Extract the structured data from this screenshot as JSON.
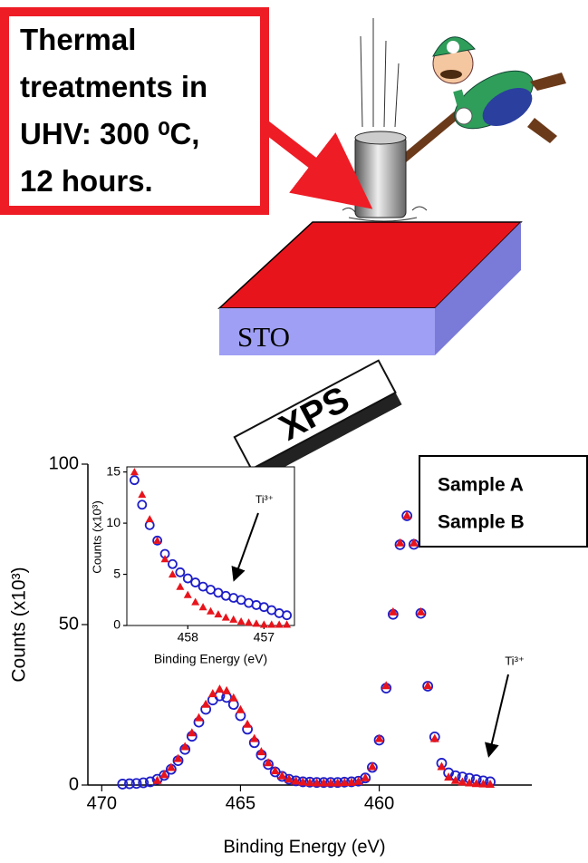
{
  "diagram": {
    "callout_lines": [
      "Thermal",
      "treatments in",
      "UHV: 300 ⁰C,",
      "12 hours."
    ],
    "substrate_label": "STO",
    "technique_label": "XPS"
  },
  "chart_data": [
    {
      "type": "scatter",
      "xlabel": "Binding Energy (eV)",
      "ylabel": "Counts (x10³)",
      "x": [
        469.25,
        469.0,
        468.75,
        468.5,
        468.25,
        468.0,
        467.75,
        467.5,
        467.25,
        467.0,
        466.75,
        466.5,
        466.25,
        466.0,
        465.75,
        465.5,
        465.25,
        465.0,
        464.75,
        464.5,
        464.25,
        464.0,
        463.75,
        463.5,
        463.25,
        463.0,
        462.75,
        462.5,
        462.25,
        462.0,
        461.75,
        461.5,
        461.25,
        461.0,
        460.75,
        460.5,
        460.25,
        460.0,
        459.75,
        459.5,
        459.25,
        459.0,
        458.75,
        458.5,
        458.25,
        458.0,
        457.75,
        457.5,
        457.25,
        457.0,
        456.75,
        456.5,
        456.25,
        456.0
      ],
      "series": [
        {
          "name": "Sample A",
          "color": "#e8141c",
          "marker": "triangle",
          "values": [
            null,
            null,
            null,
            null,
            null,
            1.5,
            3.3,
            5.5,
            8.3,
            12.0,
            16.3,
            21.0,
            25.2,
            28.5,
            29.9,
            29.4,
            27.2,
            23.5,
            19.0,
            14.5,
            10.4,
            7.0,
            4.5,
            2.9,
            1.9,
            1.3,
            1.0,
            0.8,
            0.7,
            0.7,
            0.7,
            0.7,
            0.8,
            0.9,
            1.2,
            2.3,
            5.8,
            14.5,
            31.0,
            54.0,
            75.5,
            84.0,
            75.5,
            54.0,
            31.0,
            14.5,
            5.8,
            2.5,
            1.5,
            1.0,
            0.7,
            0.5,
            0.4,
            0.3
          ]
        },
        {
          "name": "Sample B",
          "color": "#1e1ec8",
          "marker": "circle",
          "values": [
            0.3,
            0.4,
            0.5,
            0.7,
            1.0,
            1.8,
            3.0,
            4.9,
            7.6,
            11.1,
            15.2,
            19.6,
            23.6,
            26.5,
            27.8,
            27.3,
            25.1,
            21.6,
            17.4,
            13.2,
            9.4,
            6.4,
            4.1,
            2.7,
            1.8,
            1.3,
            1.0,
            0.9,
            0.8,
            0.8,
            0.8,
            0.8,
            0.9,
            1.0,
            1.2,
            2.2,
            5.5,
            14.0,
            30.2,
            53.2,
            74.9,
            83.9,
            75.0,
            53.5,
            30.8,
            15.0,
            6.8,
            3.8,
            2.9,
            2.5,
            2.1,
            1.7,
            1.3,
            1.0
          ]
        }
      ],
      "xlim": [
        470.5,
        454.5
      ],
      "xticks": [
        470,
        465,
        460
      ],
      "ylim": [
        0,
        100
      ],
      "yticks": [
        0,
        50,
        100
      ],
      "annotation": "Ti³⁺",
      "legend": "upper right"
    },
    {
      "type": "scatter",
      "xlabel": "Binding Energy (eV)",
      "ylabel": "Counts (x10³)",
      "x": [
        458.7,
        458.6,
        458.5,
        458.4,
        458.3,
        458.2,
        458.1,
        458.0,
        457.9,
        457.8,
        457.7,
        457.6,
        457.5,
        457.4,
        457.3,
        457.2,
        457.1,
        457.0,
        456.9,
        456.8,
        456.7
      ],
      "series": [
        {
          "color": "#e8141c",
          "marker": "triangle",
          "values": [
            15.0,
            12.8,
            10.4,
            8.3,
            6.5,
            5.0,
            3.8,
            3.0,
            2.3,
            1.8,
            1.4,
            1.1,
            0.8,
            0.6,
            0.4,
            0.3,
            0.2,
            0.1,
            0.1,
            0.1,
            0.1
          ]
        },
        {
          "color": "#1e1ec8",
          "marker": "circle",
          "values": [
            14.2,
            11.8,
            9.8,
            8.3,
            7.0,
            6.0,
            5.2,
            4.6,
            4.2,
            3.8,
            3.5,
            3.2,
            2.9,
            2.7,
            2.5,
            2.2,
            2.0,
            1.8,
            1.5,
            1.2,
            1.0
          ]
        }
      ],
      "xlim": [
        458.8,
        456.6
      ],
      "xticks": [
        458,
        457
      ],
      "ylim": [
        0,
        15.5
      ],
      "yticks": [
        0,
        5,
        10,
        15
      ],
      "annotation": "Ti³⁺"
    }
  ]
}
